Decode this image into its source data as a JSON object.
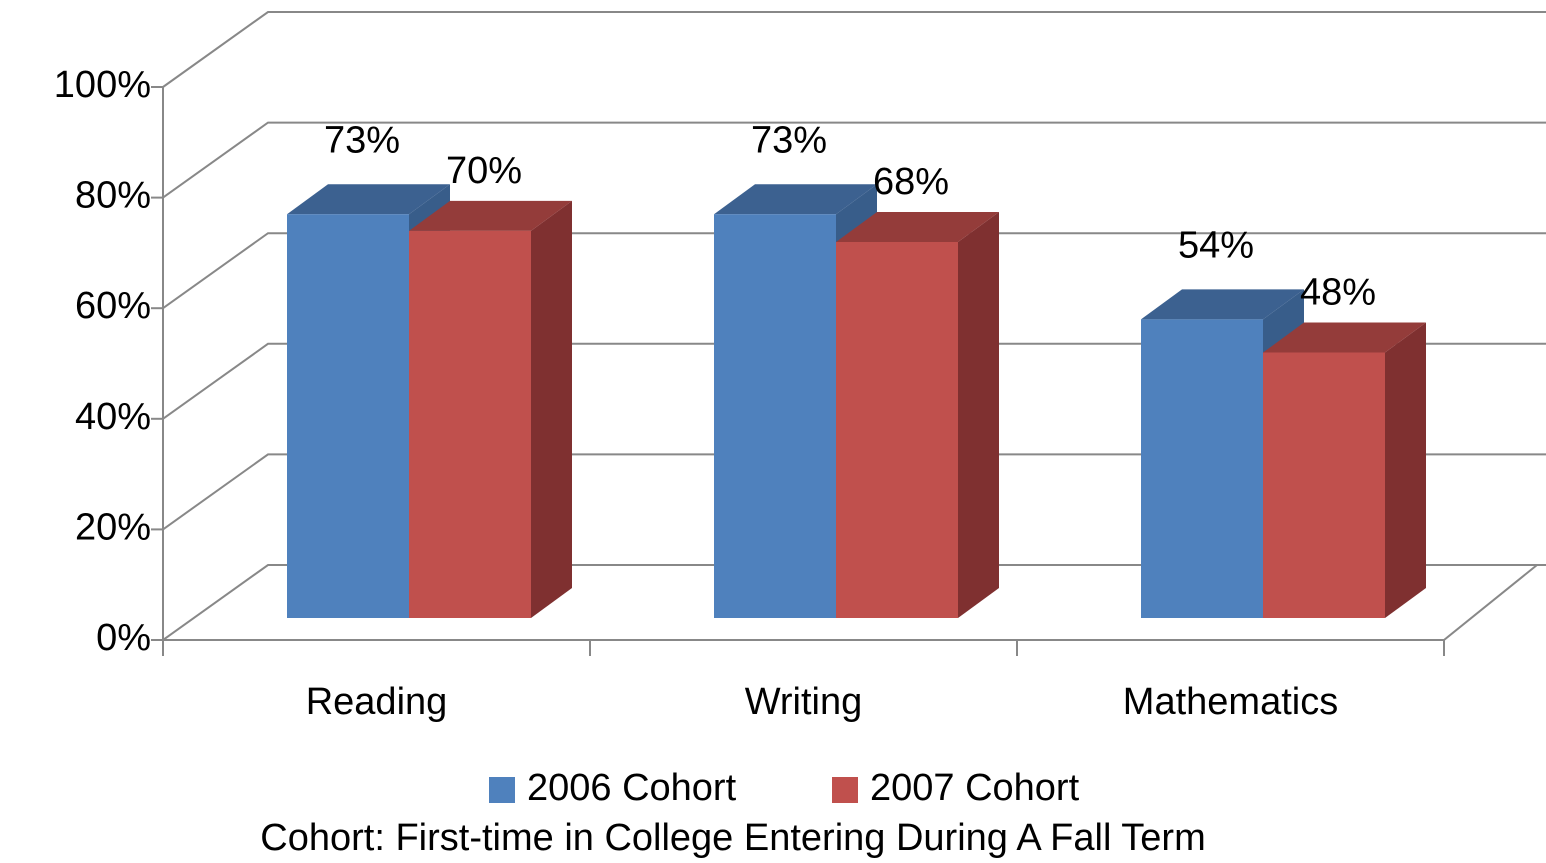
{
  "chart_data": {
    "type": "bar3d",
    "categories": [
      "Reading",
      "Writing",
      "Mathematics"
    ],
    "series": [
      {
        "name": "2006 Cohort",
        "color": "#4f81bd",
        "top_color": "#3c6190",
        "side_color": "#385d8a",
        "values": [
          73,
          73,
          54
        ],
        "value_labels": [
          "73%",
          "73%",
          "54%"
        ]
      },
      {
        "name": "2007 Cohort",
        "color": "#c0504d",
        "top_color": "#943c3a",
        "side_color": "#7f3030",
        "values": [
          70,
          68,
          48
        ],
        "value_labels": [
          "70%",
          "68%",
          "48%"
        ]
      }
    ],
    "ylim": [
      0,
      100
    ],
    "yticks": [
      {
        "value": 0,
        "label": "0%"
      },
      {
        "value": 20,
        "label": "20%"
      },
      {
        "value": 40,
        "label": "40%"
      },
      {
        "value": 60,
        "label": "60%"
      },
      {
        "value": 80,
        "label": "80%"
      },
      {
        "value": 100,
        "label": "100%"
      }
    ],
    "grid": true,
    "legend": "bottom",
    "footnote": "Cohort:  First-time in College Entering During A Fall Term"
  }
}
